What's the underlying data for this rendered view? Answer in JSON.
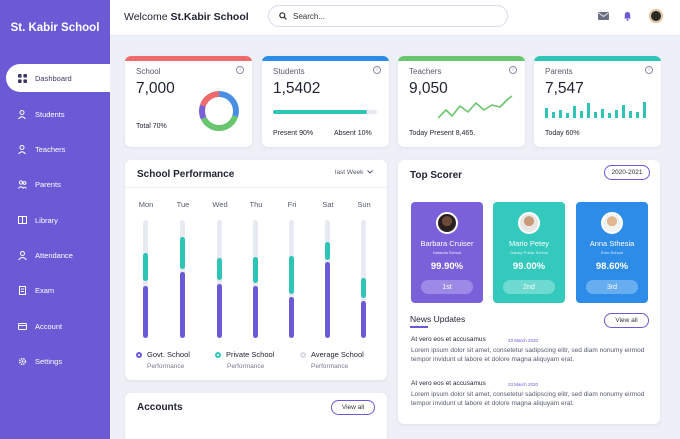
{
  "sidebar": {
    "brand": "St. Kabir School",
    "items": [
      {
        "label": "Dashboard",
        "active": true,
        "icon": "dashboard-icon"
      },
      {
        "label": "Students",
        "icon": "user-icon"
      },
      {
        "label": "Teachers",
        "icon": "user-icon"
      },
      {
        "label": "Parents",
        "icon": "parents-icon"
      },
      {
        "label": "Library",
        "icon": "book-icon"
      },
      {
        "label": "Attendance",
        "icon": "attendance-icon"
      },
      {
        "label": "Exam",
        "icon": "exam-icon"
      },
      {
        "label": "Account",
        "icon": "account-icon"
      },
      {
        "label": "Settings",
        "icon": "gear-icon"
      }
    ]
  },
  "header": {
    "welcome_prefix": "Welcome",
    "welcome_school": "St.Kabir School",
    "search_placeholder": "Search..."
  },
  "stats": {
    "school": {
      "label": "School",
      "value": "7,000",
      "foot": "Total 70%",
      "color": "#ef6a6a",
      "donut": [
        {
          "color": "#4a90e2",
          "share": 0.3
        },
        {
          "color": "#6ac66e",
          "share": 0.38
        },
        {
          "color": "#7b61d9",
          "share": 0.12
        },
        {
          "color": "#ef6a6a",
          "share": 0.2
        }
      ]
    },
    "students": {
      "label": "Students",
      "value": "1,5402",
      "foot_left": "Present  90%",
      "foot_right": "Absent  10%",
      "color": "#2d8ce8",
      "progress": 0.9
    },
    "teachers": {
      "label": "Teachers",
      "value": "9,050",
      "foot": "Today Present 8,465.",
      "color": "#6ac66e"
    },
    "parents": {
      "label": "Parents",
      "value": "7,547",
      "foot": "Today 60%",
      "color": "#2ec4b6"
    }
  },
  "performance": {
    "title": "School Performance",
    "period": "last Week",
    "days": [
      "Mon",
      "Tue",
      "Wed",
      "Thu",
      "Fri",
      "Sat",
      "Sun"
    ],
    "legend": [
      {
        "label": "Govt. School",
        "sub": "Performance",
        "color": "#6a5ad6"
      },
      {
        "label": "Private School",
        "sub": "Performance",
        "color": "#2ec4b6"
      },
      {
        "label": "Average School",
        "sub": "Performance",
        "color": "#d9dbe5"
      }
    ]
  },
  "top_scorer": {
    "title": "Top Scorer",
    "year": "2020-2021",
    "cards": [
      {
        "name": "Barbara Cruiser",
        "school": "Nalanda School",
        "pct": "99.90%",
        "rank": "1st",
        "bg": "#7b61d9",
        "rank_bg": "#9d8ae6"
      },
      {
        "name": "Mario Petey",
        "school": "Galaxy Public School",
        "pct": "99.00%",
        "rank": "2nd",
        "bg": "#33c9bd",
        "rank_bg": "#6fdad0"
      },
      {
        "name": "Anna Sthesia",
        "school": "Euro School",
        "pct": "98.60%",
        "rank": "3rd",
        "bg": "#2d8ce8",
        "rank_bg": "#67aef0"
      }
    ]
  },
  "news": {
    "title": "News Updates",
    "view_all": "View all",
    "items": [
      {
        "headline": "At vero eos et accusamus",
        "date": "23 March 2020",
        "body": "Lorem ipsum dolor sit amet, consetetur sadipscing elitr, sed diam nonumy eirmod tempor invidunt ut labore et dolore magna aliquyam erat."
      },
      {
        "headline": "At vero eos et accusamus",
        "date": "23 March 2020",
        "body": "Lorem ipsum dolor sit amet, consetetur sadipscing elitr, sed diam nonumy eirmod tempor invidunt ut labore et dolore magna aliquyam erat."
      }
    ]
  },
  "accounts": {
    "title": "Accounts",
    "view_all": "View all"
  }
}
